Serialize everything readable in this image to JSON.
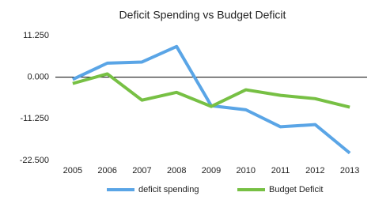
{
  "chart_data": {
    "type": "line",
    "title": "Deficit Spending vs Budget Deficit",
    "categories": [
      "2005",
      "2006",
      "2007",
      "2008",
      "2009",
      "2010",
      "2011",
      "2012",
      "2013"
    ],
    "series": [
      {
        "name": "deficit spending",
        "color": "#5aa5e6",
        "values": [
          -0.6,
          3.8,
          4.1,
          8.3,
          -7.7,
          -8.8,
          -13.4,
          -12.8,
          -20.5
        ]
      },
      {
        "name": "Budget Deficit",
        "color": "#77c044",
        "values": [
          -1.7,
          0.9,
          -6.2,
          -4.1,
          -7.9,
          -3.4,
          -4.9,
          -5.8,
          -8.1
        ]
      }
    ],
    "ylim": [
      -22.5,
      11.25
    ],
    "yticks": [
      {
        "value": 11.25,
        "label": "11.250"
      },
      {
        "value": 0,
        "label": "0.000"
      },
      {
        "value": -11.25,
        "label": "-11.250"
      },
      {
        "value": -22.5,
        "label": "-22.500"
      }
    ],
    "grid": false,
    "legend": "bottom"
  }
}
